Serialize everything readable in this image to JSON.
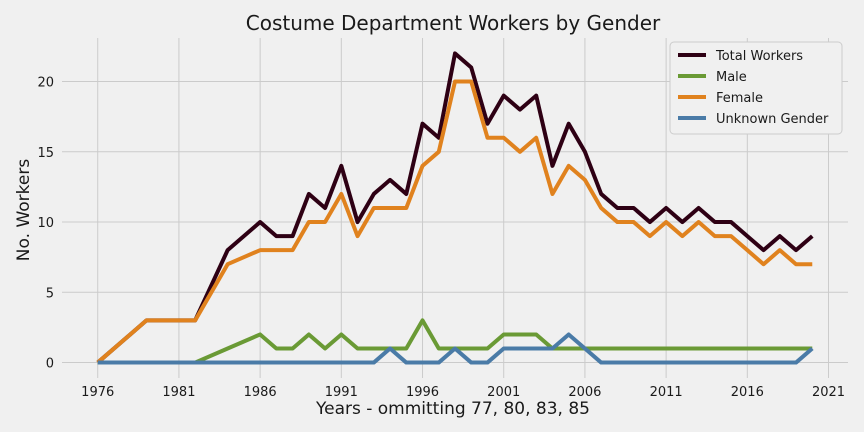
{
  "chart_data": {
    "type": "line",
    "title": "Costume Department Workers by Gender",
    "xlabel": "Years - ommitting 77, 80, 83, 85",
    "ylabel": "No. Workers",
    "xlim": [
      1973.8,
      2022.2
    ],
    "ylim": [
      -1.1,
      23.1
    ],
    "xticks": [
      1976,
      1981,
      1986,
      1991,
      1996,
      2001,
      2006,
      2011,
      2016,
      2021
    ],
    "yticks": [
      0,
      5,
      10,
      15,
      20
    ],
    "grid": true,
    "legend_position": "top-right",
    "x": [
      1976,
      1978,
      1979,
      1981,
      1982,
      1984,
      1986,
      1987,
      1988,
      1989,
      1990,
      1991,
      1992,
      1993,
      1994,
      1995,
      1996,
      1997,
      1998,
      1999,
      2000,
      2001,
      2002,
      2003,
      2004,
      2005,
      2006,
      2007,
      2008,
      2009,
      2010,
      2011,
      2012,
      2013,
      2014,
      2015,
      2016,
      2017,
      2018,
      2019,
      2020
    ],
    "series": [
      {
        "name": "Total Workers",
        "color": "#2e0014",
        "values": [
          0,
          2,
          3,
          3,
          3,
          8,
          10,
          9,
          9,
          12,
          11,
          14,
          10,
          12,
          13,
          12,
          17,
          16,
          22,
          21,
          17,
          19,
          18,
          19,
          14,
          17,
          15,
          12,
          11,
          11,
          10,
          11,
          10,
          11,
          10,
          10,
          9,
          8,
          9,
          8,
          9
        ]
      },
      {
        "name": "Male",
        "color": "#6a9a35",
        "values": [
          0,
          0,
          0,
          0,
          0,
          1,
          2,
          1,
          1,
          2,
          1,
          2,
          1,
          1,
          1,
          1,
          3,
          1,
          1,
          1,
          1,
          2,
          2,
          2,
          1,
          1,
          1,
          1,
          1,
          1,
          1,
          1,
          1,
          1,
          1,
          1,
          1,
          1,
          1,
          1,
          1
        ]
      },
      {
        "name": "Female",
        "color": "#e0821e",
        "values": [
          0,
          2,
          3,
          3,
          3,
          7,
          8,
          8,
          8,
          10,
          10,
          12,
          9,
          11,
          11,
          11,
          14,
          15,
          20,
          20,
          16,
          16,
          15,
          16,
          12,
          14,
          13,
          11,
          10,
          10,
          9,
          10,
          9,
          10,
          9,
          9,
          8,
          7,
          8,
          7,
          7
        ]
      },
      {
        "name": "Unknown Gender",
        "color": "#4a7ba7",
        "values": [
          0,
          0,
          0,
          0,
          0,
          0,
          0,
          0,
          0,
          0,
          0,
          0,
          0,
          0,
          1,
          0,
          0,
          0,
          1,
          0,
          0,
          1,
          1,
          1,
          1,
          2,
          1,
          0,
          0,
          0,
          0,
          0,
          0,
          0,
          0,
          0,
          0,
          0,
          0,
          0,
          1
        ]
      }
    ]
  }
}
